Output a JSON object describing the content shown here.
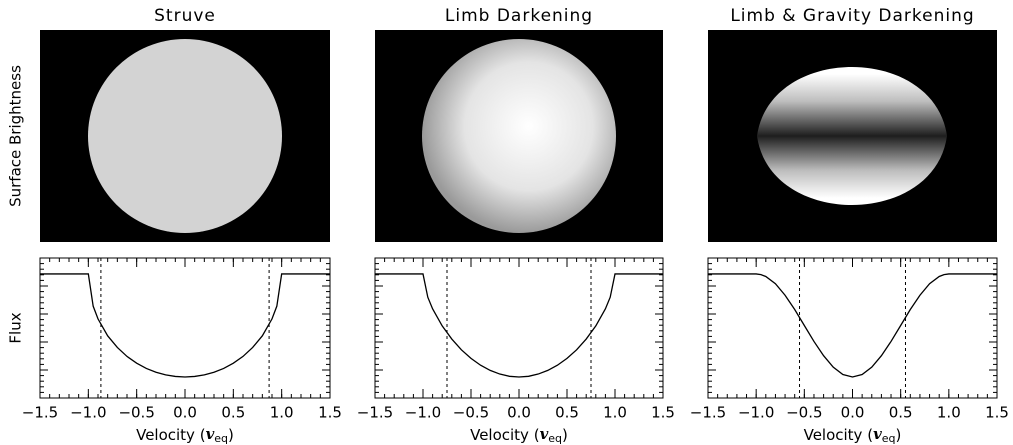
{
  "chart_data": [
    {
      "type": "line",
      "title": "Struve",
      "image_ylabel": "Surface Brightness",
      "ylabel": "Flux",
      "xlabel": [
        "Velocity (",
        "v",
        "eq",
        ")"
      ],
      "x": [
        -1.5,
        -1.0,
        -0.95,
        -0.9,
        -0.8,
        -0.7,
        -0.6,
        -0.5,
        -0.4,
        -0.3,
        -0.2,
        -0.1,
        0,
        0.1,
        0.2,
        0.3,
        0.4,
        0.5,
        0.6,
        0.7,
        0.8,
        0.9,
        0.95,
        1.0,
        1.5
      ],
      "series": [
        {
          "color": "#000000",
          "values": [
            0.886,
            0.886,
            0.656,
            0.565,
            0.444,
            0.361,
            0.297,
            0.249,
            0.211,
            0.184,
            0.165,
            0.154,
            0.15,
            0.154,
            0.165,
            0.184,
            0.211,
            0.249,
            0.297,
            0.361,
            0.444,
            0.565,
            0.656,
            0.886,
            0.886
          ]
        }
      ],
      "vlines": [
        -0.87,
        0.87
      ],
      "xlim": [
        -1.5,
        1.5
      ],
      "ylim": [
        0,
        1
      ],
      "xticks": [
        {
          "value": -1.5,
          "label": "−1.5"
        },
        {
          "value": -1.0,
          "label": "−1.0"
        },
        {
          "value": -0.5,
          "label": "−0.5"
        },
        {
          "value": 0,
          "label": "0.0"
        },
        0.5,
        {
          "value": 1.0,
          "label": "1.0"
        },
        1.5
      ]
    },
    {
      "type": "line",
      "title": "Limb Darkening",
      "xlabel": [
        "Velocity  (",
        "v",
        "eq",
        ")"
      ],
      "x": [
        -1.5,
        -1.0,
        -0.95,
        -0.9,
        -0.8,
        -0.7,
        -0.6,
        -0.5,
        -0.4,
        -0.3,
        -0.2,
        -0.1,
        0,
        0.1,
        0.2,
        0.3,
        0.4,
        0.5,
        0.6,
        0.7,
        0.8,
        0.9,
        0.95,
        1.0,
        1.5
      ],
      "series": [
        {
          "color": "#000000",
          "values": [
            0.886,
            0.886,
            0.72,
            0.637,
            0.515,
            0.421,
            0.344,
            0.283,
            0.234,
            0.197,
            0.171,
            0.155,
            0.15,
            0.155,
            0.171,
            0.197,
            0.234,
            0.283,
            0.344,
            0.421,
            0.515,
            0.637,
            0.72,
            0.886,
            0.886
          ]
        }
      ],
      "vlines": [
        -0.75,
        0.75
      ],
      "xlim": [
        -1.5,
        1.5
      ],
      "ylim": [
        0,
        1
      ],
      "xticks": [
        {
          "value": -1.5,
          "label": "−1.5"
        },
        {
          "value": -1.0,
          "label": "−1.0"
        },
        {
          "value": -0.5,
          "label": "−0.5"
        },
        {
          "value": 0,
          "label": "0.0"
        },
        0.5,
        {
          "value": 1.0,
          "label": "1.0"
        },
        1.5
      ]
    },
    {
      "type": "line",
      "title": "Limb & Gravity Darkening",
      "xlabel": [
        "Velocity  (",
        "v",
        "eq",
        ")"
      ],
      "x": [
        -1.5,
        -1.0,
        -0.95,
        -0.9,
        -0.8,
        -0.7,
        -0.6,
        -0.5,
        -0.4,
        -0.3,
        -0.2,
        -0.1,
        0,
        0.1,
        0.2,
        0.3,
        0.4,
        0.5,
        0.6,
        0.7,
        0.8,
        0.9,
        0.95,
        1.0,
        1.5
      ],
      "series": [
        {
          "color": "#000000",
          "values": [
            0.886,
            0.886,
            0.881,
            0.868,
            0.816,
            0.734,
            0.632,
            0.518,
            0.404,
            0.302,
            0.22,
            0.168,
            0.15,
            0.168,
            0.22,
            0.302,
            0.404,
            0.518,
            0.632,
            0.734,
            0.816,
            0.868,
            0.881,
            0.886,
            0.886
          ]
        }
      ],
      "vlines": [
        -0.55,
        0.55
      ],
      "xlim": [
        -1.5,
        1.5
      ],
      "ylim": [
        0,
        1
      ],
      "xticks": [
        {
          "value": -1.5,
          "label": "−1.5"
        },
        {
          "value": -1.0,
          "label": "−1.0"
        },
        {
          "value": -0.5,
          "label": "−0.5"
        },
        {
          "value": 0,
          "label": "0.0"
        },
        0.5,
        {
          "value": 1.0,
          "label": "1.0"
        },
        1.5
      ]
    }
  ]
}
